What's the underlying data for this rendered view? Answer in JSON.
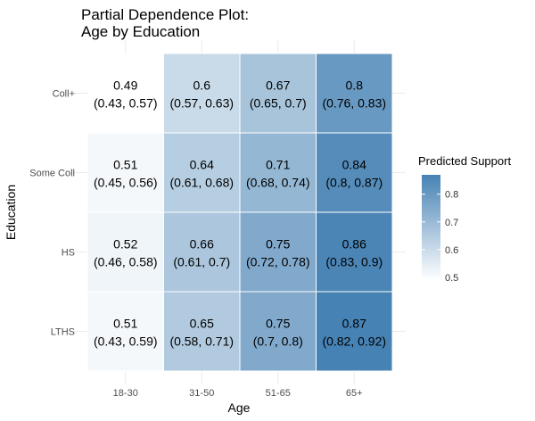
{
  "chart_data": {
    "type": "heatmap",
    "title": "Partial Dependence Plot:",
    "subtitle": "Age by Education",
    "xlabel": "Age",
    "ylabel": "Education",
    "x_categories": [
      "18-30",
      "31-50",
      "51-65",
      "65+"
    ],
    "y_categories": [
      "LTHS",
      "HS",
      "Some Coll",
      "Coll+"
    ],
    "cells": [
      {
        "x": "18-30",
        "y": "Coll+",
        "value": 0.49,
        "ci": "(0.43, 0.57)"
      },
      {
        "x": "31-50",
        "y": "Coll+",
        "value": 0.6,
        "ci": "(0.57, 0.63)"
      },
      {
        "x": "51-65",
        "y": "Coll+",
        "value": 0.67,
        "ci": "(0.65, 0.7)"
      },
      {
        "x": "65+",
        "y": "Coll+",
        "value": 0.8,
        "ci": "(0.76, 0.83)"
      },
      {
        "x": "18-30",
        "y": "Some Coll",
        "value": 0.51,
        "ci": "(0.45, 0.56)"
      },
      {
        "x": "31-50",
        "y": "Some Coll",
        "value": 0.64,
        "ci": "(0.61, 0.68)"
      },
      {
        "x": "51-65",
        "y": "Some Coll",
        "value": 0.71,
        "ci": "(0.68, 0.74)"
      },
      {
        "x": "65+",
        "y": "Some Coll",
        "value": 0.84,
        "ci": "(0.8, 0.87)"
      },
      {
        "x": "18-30",
        "y": "HS",
        "value": 0.52,
        "ci": "(0.46, 0.58)"
      },
      {
        "x": "31-50",
        "y": "HS",
        "value": 0.66,
        "ci": "(0.61, 0.7)"
      },
      {
        "x": "51-65",
        "y": "HS",
        "value": 0.75,
        "ci": "(0.72, 0.78)"
      },
      {
        "x": "65+",
        "y": "HS",
        "value": 0.86,
        "ci": "(0.83, 0.9)"
      },
      {
        "x": "18-30",
        "y": "LTHS",
        "value": 0.51,
        "ci": "(0.43, 0.59)"
      },
      {
        "x": "31-50",
        "y": "LTHS",
        "value": 0.65,
        "ci": "(0.58, 0.71)"
      },
      {
        "x": "51-65",
        "y": "LTHS",
        "value": 0.75,
        "ci": "(0.7, 0.8)"
      },
      {
        "x": "65+",
        "y": "LTHS",
        "value": 0.87,
        "ci": "(0.82, 0.92)"
      }
    ],
    "legend": {
      "title": "Predicted Support",
      "ticks": [
        0.5,
        0.6,
        0.7,
        0.8
      ],
      "range": [
        0.49,
        0.87
      ],
      "placement": "right"
    },
    "colors": {
      "low": "#ffffff",
      "high": "#4682b4"
    },
    "grid": true
  }
}
